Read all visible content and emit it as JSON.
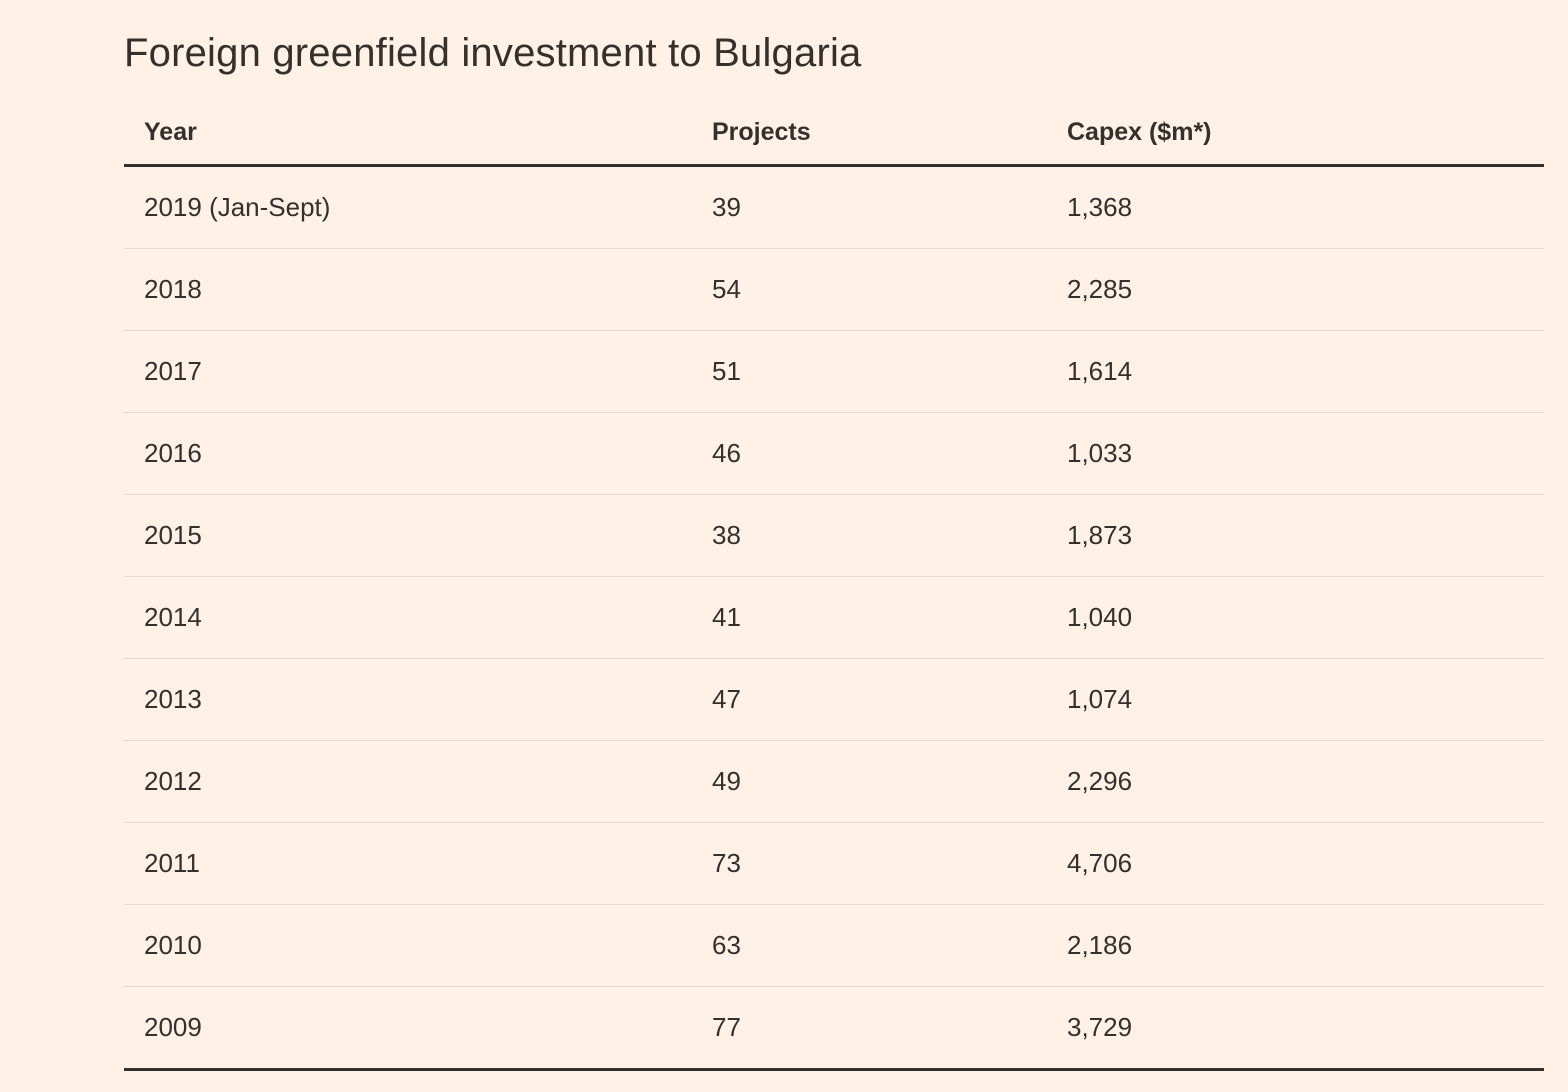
{
  "title": "Foreign greenfield investment to Bulgaria",
  "table": {
    "columns": [
      "Year",
      "Projects",
      "Capex ($m*)"
    ],
    "rows": [
      [
        "2019 (Jan-Sept)",
        "39",
        "1,368"
      ],
      [
        "2018",
        "54",
        "2,285"
      ],
      [
        "2017",
        "51",
        "1,614"
      ],
      [
        "2016",
        "46",
        "1,033"
      ],
      [
        "2015",
        "38",
        "1,873"
      ],
      [
        "2014",
        "41",
        "1,040"
      ],
      [
        "2013",
        "47",
        "1,074"
      ],
      [
        "2012",
        "49",
        "2,296"
      ],
      [
        "2011",
        "73",
        "4,706"
      ],
      [
        "2010",
        "63",
        "2,186"
      ],
      [
        "2009",
        "77",
        "3,729"
      ]
    ]
  },
  "colors": {
    "background": "#FFF1E5",
    "text": "#33302E",
    "header_rule": "#33302E",
    "row_divider": "#E5D8CC"
  },
  "chart_data": {
    "type": "table",
    "title": "Foreign greenfield investment to Bulgaria",
    "columns": [
      "Year",
      "Projects",
      "Capex ($m*)"
    ],
    "categories": [
      "2019 (Jan-Sept)",
      "2018",
      "2017",
      "2016",
      "2015",
      "2014",
      "2013",
      "2012",
      "2011",
      "2010",
      "2009"
    ],
    "series": [
      {
        "name": "Projects",
        "values": [
          39,
          54,
          51,
          46,
          38,
          41,
          47,
          49,
          73,
          63,
          77
        ]
      },
      {
        "name": "Capex ($m*)",
        "values": [
          1368,
          2285,
          1614,
          1033,
          1873,
          1040,
          1074,
          2296,
          4706,
          2186,
          3729
        ]
      }
    ]
  }
}
